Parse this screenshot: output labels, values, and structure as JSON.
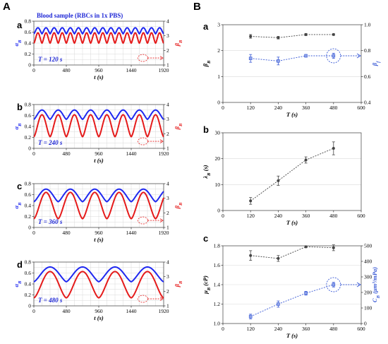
{
  "figure": {
    "panel_A_label": "A",
    "panel_B_label": "B"
  },
  "colors": {
    "alpha": "#1f28f0",
    "beta": "#e51a1a",
    "black_series": "#444444",
    "blue_series": "#3b5bd6",
    "grid": "#d9d9d9"
  },
  "chart_data": [
    {
      "id": "A-a",
      "type": "line",
      "label": "a",
      "title": "Blood sample (RBCs in 1x PBS)",
      "annotation": "T = 120 s",
      "xlabel": "t (s)",
      "ylabel_left": "α_B",
      "ylabel_right": "β_B",
      "xlim": [
        0,
        1920
      ],
      "ylim_left": [
        0,
        0.8
      ],
      "ylim_right": [
        1,
        4
      ],
      "xticks": [
        0,
        480,
        960,
        1440,
        1920
      ],
      "yticks_left": [
        0,
        0.2,
        0.4,
        0.6,
        0.8
      ],
      "yticks_right": [
        1,
        2,
        3,
        4
      ],
      "period_s": 120,
      "series": [
        {
          "name": "α_B",
          "axis": "left",
          "min": 0.57,
          "max": 0.68,
          "phase": 0
        },
        {
          "name": "β_B",
          "axis": "right",
          "min": 2.5,
          "max": 3.2,
          "phase": 0
        }
      ]
    },
    {
      "id": "A-b",
      "type": "line",
      "label": "b",
      "annotation": "T = 240 s",
      "xlabel": "t (s)",
      "ylabel_left": "α_B",
      "ylabel_right": "β_B",
      "xlim": [
        0,
        1920
      ],
      "ylim_left": [
        0,
        0.8
      ],
      "ylim_right": [
        1,
        4
      ],
      "xticks": [
        0,
        480,
        960,
        1440,
        1920
      ],
      "yticks_left": [
        0,
        0.2,
        0.4,
        0.6,
        0.8
      ],
      "yticks_right": [
        1,
        2,
        3,
        4
      ],
      "period_s": 240,
      "series": [
        {
          "name": "α_B",
          "axis": "left",
          "min": 0.53,
          "max": 0.7,
          "phase": 0
        },
        {
          "name": "β_B",
          "axis": "right",
          "min": 1.8,
          "max": 3.3,
          "phase": 0
        }
      ]
    },
    {
      "id": "A-c",
      "type": "line",
      "label": "c",
      "annotation": "T = 360 s",
      "xlabel": "t (s)",
      "ylabel_left": "α_B",
      "ylabel_right": "β_B",
      "xlim": [
        0,
        1920
      ],
      "ylim_left": [
        0,
        0.8
      ],
      "ylim_right": [
        1,
        4
      ],
      "xticks": [
        0,
        480,
        960,
        1440,
        1920
      ],
      "yticks_left": [
        0,
        0.2,
        0.4,
        0.6,
        0.8
      ],
      "yticks_right": [
        1,
        2,
        3,
        4
      ],
      "period_s": 360,
      "series": [
        {
          "name": "α_B",
          "axis": "left",
          "min": 0.47,
          "max": 0.7,
          "phase": 0
        },
        {
          "name": "β_B",
          "axis": "right",
          "min": 1.6,
          "max": 3.4,
          "phase": 0
        }
      ]
    },
    {
      "id": "A-d",
      "type": "line",
      "label": "d",
      "annotation": "T = 480 s",
      "xlabel": "t (s)",
      "ylabel_left": "α_B",
      "ylabel_right": "β_B",
      "xlim": [
        0,
        1920
      ],
      "ylim_left": [
        0,
        0.8
      ],
      "ylim_right": [
        1,
        4
      ],
      "xticks": [
        0,
        480,
        960,
        1440,
        1920
      ],
      "yticks_left": [
        0,
        0.2,
        0.4,
        0.6,
        0.8
      ],
      "yticks_right": [
        1,
        2,
        3,
        4
      ],
      "period_s": 480,
      "series": [
        {
          "name": "α_B",
          "axis": "left",
          "min": 0.44,
          "max": 0.71,
          "phase": 0
        },
        {
          "name": "β_B",
          "axis": "right",
          "min": 1.55,
          "max": 3.35,
          "phase": 0
        }
      ]
    },
    {
      "id": "B-a",
      "type": "scatter",
      "label": "a",
      "xlabel": "T (s)",
      "ylabel_left": "β_B",
      "ylabel_right": "β_f",
      "xlim": [
        0,
        600
      ],
      "ylim_left": [
        0,
        3
      ],
      "ylim_right": [
        0.4,
        1.0
      ],
      "xticks": [
        0,
        120,
        240,
        360,
        480,
        600
      ],
      "yticks_left": [
        0,
        1,
        2,
        3
      ],
      "yticks_right": [
        0.4,
        0.6,
        0.8,
        1.0
      ],
      "x": [
        120,
        240,
        360,
        480
      ],
      "series": [
        {
          "name": "β_B",
          "axis": "left",
          "values": [
            2.55,
            2.5,
            2.62,
            2.62
          ],
          "err": [
            0.07,
            0.05,
            0.04,
            0.03
          ]
        },
        {
          "name": "β_f",
          "axis": "right",
          "values": [
            0.74,
            0.72,
            0.76,
            0.76
          ],
          "err": [
            0.03,
            0.03,
            0.01,
            0.02
          ]
        }
      ]
    },
    {
      "id": "B-b",
      "type": "scatter",
      "label": "b",
      "xlabel": "T (s)",
      "ylabel_left": "λ_B (s)",
      "xlim": [
        0,
        600
      ],
      "ylim_left": [
        0,
        30
      ],
      "xticks": [
        0,
        120,
        240,
        360,
        480,
        600
      ],
      "yticks_left": [
        0,
        10,
        20,
        30
      ],
      "x": [
        120,
        240,
        360,
        480
      ],
      "series": [
        {
          "name": "λ_B",
          "axis": "left",
          "values": [
            3.7,
            11.5,
            19.5,
            24
          ],
          "err": [
            1.3,
            1.8,
            1.2,
            2.5
          ]
        }
      ]
    },
    {
      "id": "B-c",
      "type": "scatter",
      "label": "c",
      "xlabel": "T (s)",
      "ylabel_left": "μ_B (cP)",
      "ylabel_right": "C_B (μm³/mPa)",
      "xlim": [
        0,
        600
      ],
      "ylim_left": [
        1.0,
        1.8
      ],
      "ylim_right": [
        0,
        500
      ],
      "xticks": [
        0,
        120,
        240,
        360,
        480,
        600
      ],
      "yticks_left": [
        1.0,
        1.2,
        1.4,
        1.6,
        1.8
      ],
      "yticks_right": [
        0,
        100,
        200,
        300,
        400,
        500
      ],
      "x": [
        120,
        240,
        360,
        480
      ],
      "series": [
        {
          "name": "μ_B",
          "axis": "left",
          "values": [
            1.7,
            1.67,
            1.79,
            1.78
          ],
          "err": [
            0.05,
            0.03,
            0.01,
            0.03
          ]
        },
        {
          "name": "C_B",
          "axis": "right",
          "values": [
            45,
            125,
            195,
            250
          ],
          "err": [
            15,
            20,
            12,
            15
          ]
        }
      ]
    }
  ]
}
